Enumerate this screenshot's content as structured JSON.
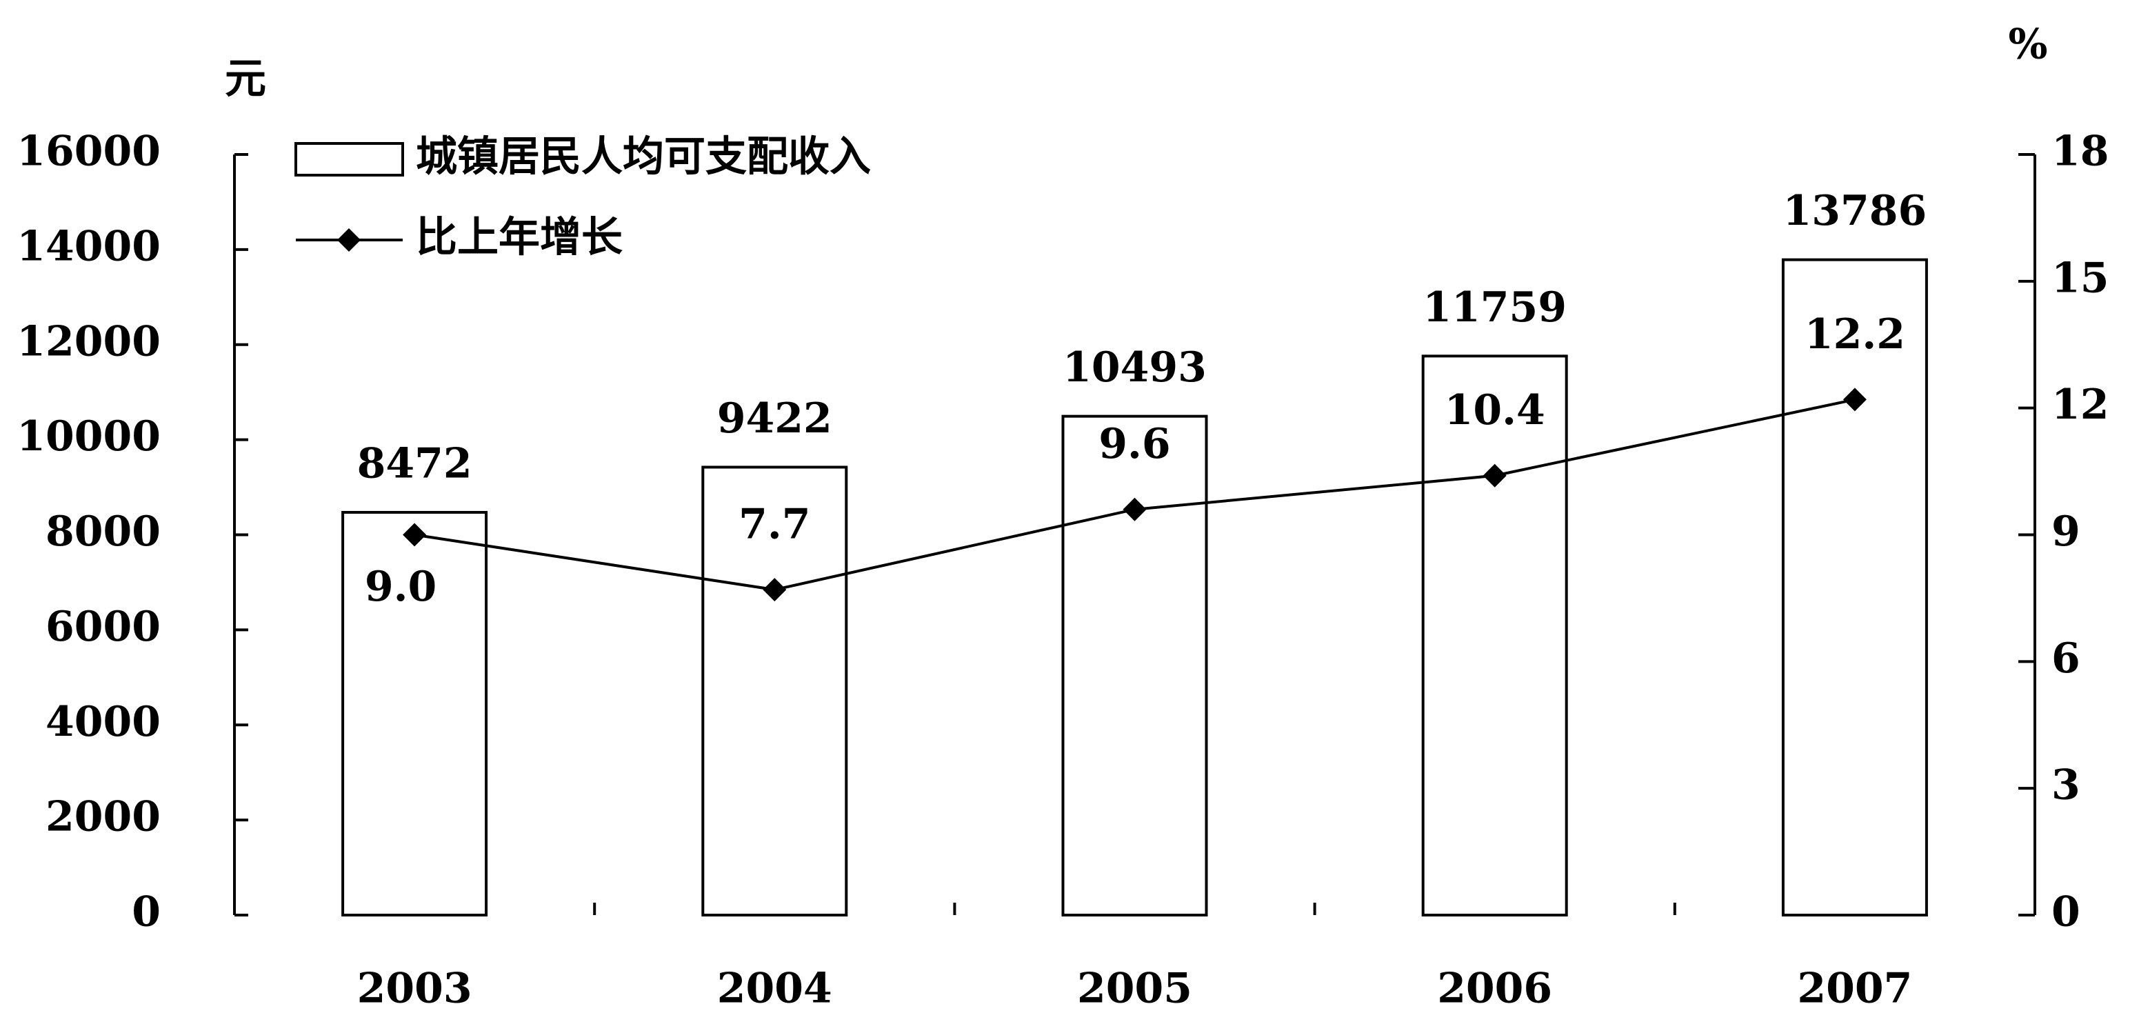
{
  "chart_data": {
    "type": "bar_line",
    "y_label": "元",
    "y2_label": "%",
    "categories": [
      "2003",
      "2004",
      "2005",
      "2006",
      "2007"
    ],
    "series": [
      {
        "name": "城镇居民人均可支配收入",
        "type": "bar",
        "color": "#ffffff",
        "values": [
          8472,
          9422,
          10493,
          11759,
          13786
        ]
      },
      {
        "name": "比上年增长",
        "type": "line",
        "axis": "y2",
        "color": "#000000",
        "values": [
          9.0,
          7.7,
          9.6,
          10.4,
          12.2
        ],
        "value_labels": [
          "9.0",
          "7.7",
          "9.6",
          "10.4",
          "12.2"
        ]
      }
    ],
    "ylim": [
      0,
      16000
    ],
    "yticks": [
      0,
      2000,
      4000,
      6000,
      8000,
      10000,
      12000,
      14000,
      16000
    ],
    "y2lim": [
      0,
      18
    ],
    "y2ticks": [
      0,
      3,
      6,
      9,
      12,
      15,
      18
    ],
    "legend": "top-left",
    "grid": false
  }
}
